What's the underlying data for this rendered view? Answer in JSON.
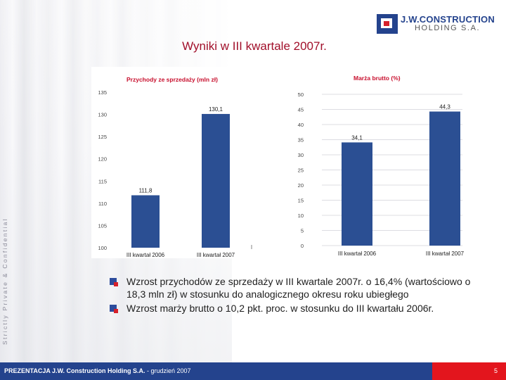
{
  "side_text": "Strictly Private & Confidential",
  "logo": {
    "line1": "J.W.CONSTRUCTION",
    "line2": "HOLDING S.A."
  },
  "title": "Wyniki w III kwartale 2007r.",
  "bullets": [
    "Wzrost przychodów ze sprzedaży w III kwartale 2007r. o 16,4% (wartościowo o 18,3 mln zł) w stosunku do analogicznego okresu roku ubiegłego",
    "Wzrost marży brutto o 10,2 pkt. proc. w stosunku do III kwartału 2006r."
  ],
  "footer": {
    "text_bold": "PREZENTACJA J.W. Construction Holding S.A.",
    "text_rest": " - grudzień 2007",
    "page": "5"
  },
  "colors": {
    "bar": "#2b4f93",
    "title": "#a10f2a",
    "footer": "#24438d",
    "footer_accent": "#e3151d"
  },
  "chart_data": [
    {
      "type": "bar",
      "title": "Przychody ze sprzedaży (mln zł)",
      "categories": [
        "III kwartał 2006",
        "III kwartał 2007"
      ],
      "values": [
        111.8,
        130.1
      ],
      "value_labels": [
        "111,8",
        "130,1"
      ],
      "yticks": [
        "135",
        "130",
        "125",
        "120",
        "115",
        "110",
        "105",
        "100"
      ],
      "ylim": [
        100,
        135
      ],
      "grid": false
    },
    {
      "type": "bar",
      "title": "Marża brutto (%)",
      "categories": [
        "III kwartał 2006",
        "III kwartał 2007"
      ],
      "values": [
        34.1,
        44.3
      ],
      "value_labels": [
        "34,1",
        "44,3"
      ],
      "yticks": [
        "50",
        "45",
        "40",
        "35",
        "30",
        "25",
        "20",
        "15",
        "10",
        "5",
        "0"
      ],
      "ylim": [
        0,
        50
      ],
      "grid": true
    }
  ]
}
